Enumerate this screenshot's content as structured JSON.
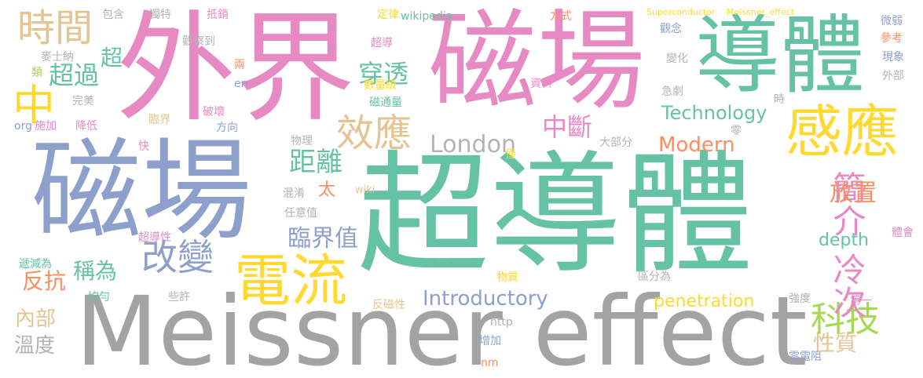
{
  "palette": {
    "green": "#66c2a5",
    "orange": "#fc8d62",
    "blue": "#8da0cb",
    "pink": "#e78ac3",
    "lime": "#a6d854",
    "yellow": "#ffd92f",
    "tan": "#e5c494",
    "gray": "#b3b3b3",
    "darkgray": "#a3a3a3"
  },
  "words": [
    {
      "text": "Meissner effect",
      "color": "darkgray"
    },
    {
      "text": "超導體",
      "color": "green"
    },
    {
      "text": "磁場",
      "color": "blue"
    },
    {
      "text": "磁場",
      "color": "pink"
    },
    {
      "text": "外界",
      "color": "pink"
    },
    {
      "text": "導體",
      "color": "green"
    },
    {
      "text": "感應",
      "color": "yellow"
    },
    {
      "text": "電流",
      "color": "yellow"
    },
    {
      "text": "效應",
      "color": "tan"
    },
    {
      "text": "時間",
      "color": "tan"
    },
    {
      "text": "中",
      "color": "yellow"
    },
    {
      "text": "改變",
      "color": "blue"
    },
    {
      "text": "科技",
      "color": "lime"
    },
    {
      "text": "Technology",
      "color": "green"
    },
    {
      "text": "Modern",
      "color": "orange"
    },
    {
      "text": "London",
      "color": "gray"
    },
    {
      "text": "Introductory",
      "color": "blue"
    },
    {
      "text": "penetration",
      "color": "yellow"
    },
    {
      "text": "depth",
      "color": "green"
    },
    {
      "text": "簡介",
      "color": "pink"
    },
    {
      "text": "冷次",
      "color": "pink"
    },
    {
      "text": "放置",
      "color": "orange"
    },
    {
      "text": "距離",
      "color": "green"
    },
    {
      "text": "臨界值",
      "color": "blue"
    },
    {
      "text": "中斷",
      "color": "pink"
    },
    {
      "text": "穿透",
      "color": "green"
    },
    {
      "text": "超過",
      "color": "green"
    },
    {
      "text": "稱為",
      "color": "green"
    },
    {
      "text": "反抗",
      "color": "orange"
    },
    {
      "text": "內部",
      "color": "tan"
    },
    {
      "text": "溫度",
      "color": "gray"
    },
    {
      "text": "性質",
      "color": "tan"
    },
    {
      "text": "超",
      "color": "green"
    },
    {
      "text": "太",
      "color": "orange"
    },
    {
      "text": "包含",
      "color": "gray"
    },
    {
      "text": "獨特",
      "color": "gray"
    },
    {
      "text": "抵銷",
      "color": "pink"
    },
    {
      "text": "定律",
      "color": "yellow"
    },
    {
      "text": "wikipedia",
      "color": "green"
    },
    {
      "text": "方式",
      "color": "orange"
    },
    {
      "text": "Superconductor",
      "color": "yellow"
    },
    {
      "text": "Meissner_effect",
      "color": "yellow"
    },
    {
      "text": "觀察到",
      "color": "gray"
    },
    {
      "text": "超導",
      "color": "pink"
    },
    {
      "text": "兩",
      "color": "orange"
    },
    {
      "text": "數量級",
      "color": "yellow"
    },
    {
      "text": "磁通量",
      "color": "green"
    },
    {
      "text": "資料",
      "color": "pink"
    },
    {
      "text": "觀念",
      "color": "blue"
    },
    {
      "text": "變化",
      "color": "gray"
    },
    {
      "text": "微弱",
      "color": "blue"
    },
    {
      "text": "參考",
      "color": "orange"
    },
    {
      "text": "現象",
      "color": "blue"
    },
    {
      "text": "外部",
      "color": "gray"
    },
    {
      "text": "麥士納",
      "color": "gray"
    },
    {
      "text": "類",
      "color": "lime"
    },
    {
      "text": "完美",
      "color": "gray"
    },
    {
      "text": "en",
      "color": "blue"
    },
    {
      "text": "org",
      "color": "blue"
    },
    {
      "text": "施加",
      "color": "pink"
    },
    {
      "text": "降低",
      "color": "pink"
    },
    {
      "text": "臨界",
      "color": "tan"
    },
    {
      "text": "破壞",
      "color": "pink"
    },
    {
      "text": "方向",
      "color": "blue"
    },
    {
      "text": "急劇",
      "color": "gray"
    },
    {
      "text": "時",
      "color": "gray"
    },
    {
      "text": "零",
      "color": "gray"
    },
    {
      "text": "快",
      "color": "pink"
    },
    {
      "text": "物理",
      "color": "gray"
    },
    {
      "text": "大部分",
      "color": "gray"
    },
    {
      "text": "僅",
      "color": "yellow"
    },
    {
      "text": "混淆",
      "color": "gray"
    },
    {
      "text": "wiki",
      "color": "tan"
    },
    {
      "text": "任意值",
      "color": "gray"
    },
    {
      "text": "超導性",
      "color": "pink"
    },
    {
      "text": "體會",
      "color": "pink"
    },
    {
      "text": "遞減為",
      "color": "green"
    },
    {
      "text": "均勻",
      "color": "green"
    },
    {
      "text": "些許",
      "color": "gray"
    },
    {
      "text": "物質",
      "color": "yellow"
    },
    {
      "text": "區分為",
      "color": "gray"
    },
    {
      "text": "反磁性",
      "color": "tan"
    },
    {
      "text": "http",
      "color": "gray"
    },
    {
      "text": "強度",
      "color": "gray"
    },
    {
      "text": "第一",
      "color": "pink"
    },
    {
      "text": "增加",
      "color": "blue"
    },
    {
      "text": "nm",
      "color": "orange"
    },
    {
      "text": "零電阻",
      "color": "blue"
    }
  ]
}
